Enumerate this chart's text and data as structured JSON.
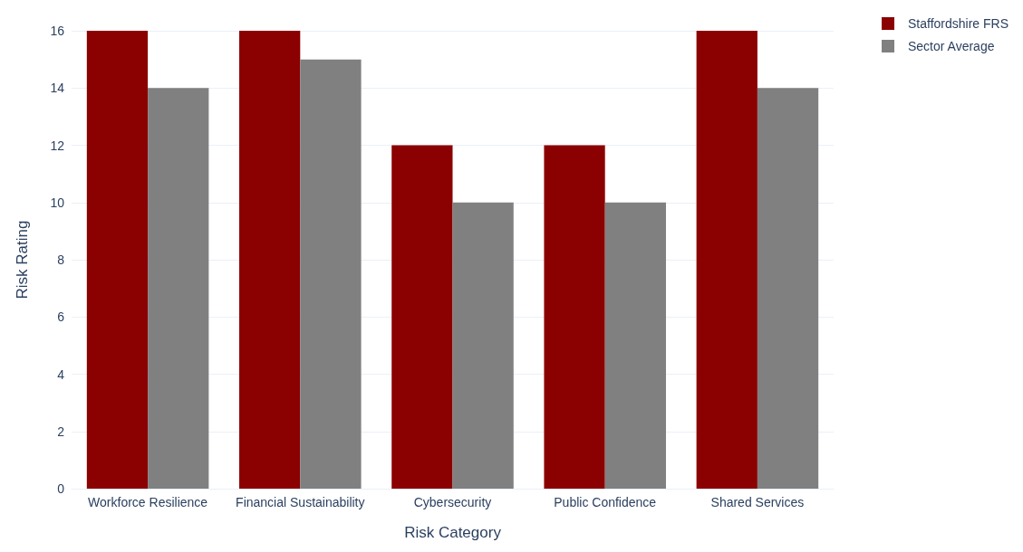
{
  "chart_data": {
    "type": "bar",
    "xlabel": "Risk Category",
    "ylabel": "Risk Rating",
    "categories": [
      "Workforce Resilience",
      "Financial Sustainability",
      "Cybersecurity",
      "Public Confidence",
      "Shared Services"
    ],
    "series": [
      {
        "name": "Staffordshire FRS",
        "color": "#8b0000",
        "values": [
          16,
          16,
          12,
          12,
          16
        ]
      },
      {
        "name": "Sector Average",
        "color": "#808080",
        "values": [
          14,
          15,
          10,
          10,
          14
        ]
      }
    ],
    "ylim": [
      0,
      16
    ],
    "yticks": [
      0,
      2,
      4,
      6,
      8,
      10,
      12,
      14,
      16
    ],
    "grid": "y",
    "legend": "top right"
  }
}
